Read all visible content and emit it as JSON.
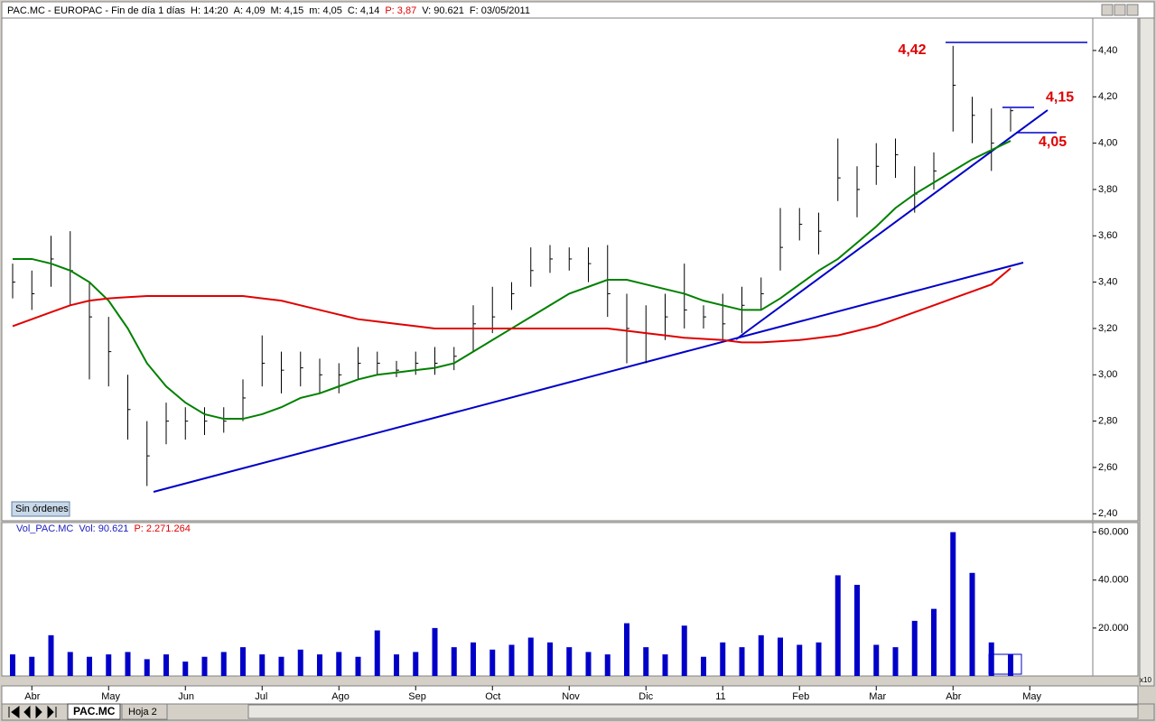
{
  "header": {
    "items": [
      {
        "text": "PAC.MC - EUROPAC - Fin de día 1 días"
      },
      {
        "text": "H: 14:20"
      },
      {
        "text": "A: 4,09"
      },
      {
        "text": "M: 4,15"
      },
      {
        "text": "m: 4,05"
      },
      {
        "text": "C: 4,14"
      },
      {
        "text": "P: 3,87",
        "color": "#e00000"
      },
      {
        "text": "V: 90.621"
      },
      {
        "text": "F: 03/05/2011"
      }
    ]
  },
  "status_button": "Sin órdenes",
  "volume_header": [
    {
      "text": "Vol_PAC.MC",
      "color": "#2020c0"
    },
    {
      "text": "Vol: 90.621",
      "color": "#2020c0"
    },
    {
      "text": "P: 2.271.264",
      "color": "#e00000"
    }
  ],
  "scale_note": "x10",
  "tabs": [
    "PAC.MC",
    "Hoja 2"
  ],
  "chart_data": [
    {
      "type": "ohlc",
      "color": "#000000",
      "high": [
        3.48,
        3.45,
        3.6,
        3.62,
        3.4,
        3.25,
        3.0,
        2.8,
        2.88,
        2.86,
        2.86,
        2.86,
        2.98,
        3.17,
        3.1,
        3.1,
        3.07,
        3.05,
        3.12,
        3.1,
        3.06,
        3.1,
        3.12,
        3.12,
        3.3,
        3.38,
        3.4,
        3.55,
        3.56,
        3.55,
        3.55,
        3.56,
        3.35,
        3.3,
        3.35,
        3.48,
        3.3,
        3.35,
        3.38,
        3.42,
        3.72,
        3.72,
        3.7,
        4.02,
        3.9,
        4.0,
        4.02,
        3.9,
        3.96,
        4.42,
        4.2,
        4.15,
        4.15,
        null
      ],
      "low": [
        3.33,
        3.28,
        3.38,
        3.3,
        2.98,
        2.95,
        2.72,
        2.52,
        2.7,
        2.72,
        2.74,
        2.75,
        2.8,
        2.95,
        2.92,
        2.95,
        2.92,
        2.92,
        2.98,
        3.0,
        2.99,
        3.0,
        3.0,
        3.02,
        3.1,
        3.18,
        3.28,
        3.38,
        3.44,
        3.45,
        3.4,
        3.25,
        3.05,
        3.05,
        3.15,
        3.2,
        3.2,
        3.15,
        3.18,
        3.28,
        3.45,
        3.58,
        3.52,
        3.75,
        3.68,
        3.82,
        3.85,
        3.7,
        3.8,
        4.05,
        4.0,
        3.88,
        4.05,
        null
      ],
      "close": [
        3.4,
        3.35,
        3.5,
        3.45,
        3.25,
        3.1,
        2.85,
        2.65,
        2.8,
        2.8,
        2.8,
        2.8,
        2.9,
        3.05,
        3.02,
        3.03,
        3.0,
        3.0,
        3.05,
        3.05,
        3.02,
        3.05,
        3.05,
        3.08,
        3.22,
        3.25,
        3.35,
        3.45,
        3.5,
        3.5,
        3.48,
        3.35,
        3.2,
        3.18,
        3.25,
        3.28,
        3.25,
        3.22,
        3.3,
        3.35,
        3.55,
        3.65,
        3.62,
        3.85,
        3.8,
        3.9,
        3.95,
        3.78,
        3.88,
        4.25,
        4.12,
        4.0,
        4.14,
        null
      ],
      "overlays": [
        {
          "color": "#008000",
          "values": [
            3.5,
            3.5,
            3.48,
            3.45,
            3.4,
            3.32,
            3.2,
            3.05,
            2.95,
            2.88,
            2.83,
            2.81,
            2.81,
            2.83,
            2.86,
            2.9,
            2.92,
            2.95,
            2.98,
            3.0,
            3.01,
            3.02,
            3.03,
            3.05,
            3.1,
            3.15,
            3.2,
            3.25,
            3.3,
            3.35,
            3.38,
            3.41,
            3.41,
            3.39,
            3.37,
            3.35,
            3.32,
            3.3,
            3.28,
            3.28,
            3.33,
            3.39,
            3.45,
            3.5,
            3.57,
            3.64,
            3.72,
            3.78,
            3.83,
            3.88,
            3.93,
            3.97,
            4.01,
            null
          ]
        },
        {
          "color": "#e00000",
          "values": [
            3.21,
            3.24,
            3.27,
            3.3,
            3.32,
            3.33,
            3.335,
            3.34,
            3.34,
            3.34,
            3.34,
            3.34,
            3.34,
            3.33,
            3.32,
            3.3,
            3.28,
            3.26,
            3.24,
            3.23,
            3.22,
            3.21,
            3.2,
            3.2,
            3.2,
            3.2,
            3.2,
            3.2,
            3.2,
            3.2,
            3.2,
            3.2,
            3.19,
            3.18,
            3.17,
            3.16,
            3.155,
            3.15,
            3.14,
            3.14,
            3.145,
            3.15,
            3.16,
            3.17,
            3.19,
            3.21,
            3.24,
            3.27,
            3.3,
            3.33,
            3.36,
            3.39,
            3.46,
            null
          ]
        }
      ],
      "annotations": [
        {
          "label": "4,42",
          "value": 4.42
        },
        {
          "label": "4,15",
          "value": 4.15
        },
        {
          "label": "4,05",
          "value": 4.05
        }
      ],
      "ylim": [
        2.37,
        4.54
      ],
      "yticks": [
        {
          "value": 2.4,
          "label": "2,40"
        },
        {
          "value": 2.6,
          "label": "2,60"
        },
        {
          "value": 2.8,
          "label": "2,80"
        },
        {
          "value": 3.0,
          "label": "3,00"
        },
        {
          "value": 3.2,
          "label": "3,20"
        },
        {
          "value": 3.4,
          "label": "3,40"
        },
        {
          "value": 3.6,
          "label": "3,60"
        },
        {
          "value": 3.8,
          "label": "3,80"
        },
        {
          "value": 4.0,
          "label": "4,00"
        },
        {
          "value": 4.2,
          "label": "4,20"
        },
        {
          "value": 4.4,
          "label": "4,40"
        }
      ]
    },
    {
      "type": "bar",
      "color": "#0000c8",
      "categories": [
        null,
        "Abr",
        null,
        null,
        null,
        "May",
        null,
        null,
        null,
        "Jun",
        null,
        null,
        null,
        "Jul",
        null,
        null,
        null,
        "Ago",
        null,
        null,
        null,
        "Sep",
        null,
        null,
        null,
        "Oct",
        null,
        null,
        null,
        "Nov",
        null,
        null,
        null,
        "Dic",
        null,
        null,
        null,
        "11",
        null,
        null,
        null,
        "Feb",
        null,
        null,
        null,
        "Mar",
        null,
        null,
        null,
        "Abr",
        null,
        null,
        null,
        "May"
      ],
      "values": [
        9000,
        8000,
        17000,
        10000,
        8000,
        9000,
        10000,
        7000,
        9000,
        6000,
        8000,
        10000,
        12000,
        9000,
        8000,
        11000,
        9000,
        10000,
        8000,
        19000,
        9000,
        10000,
        20000,
        12000,
        14000,
        11000,
        13000,
        16000,
        14000,
        12000,
        10000,
        9000,
        22000,
        12000,
        9000,
        21000,
        8000,
        14000,
        12000,
        17000,
        16000,
        13000,
        14000,
        42000,
        38000,
        13000,
        12000,
        23000,
        28000,
        60000,
        43000,
        14000,
        9000,
        null
      ],
      "ylim": [
        0,
        64000
      ],
      "yticks": [
        {
          "value": 20000,
          "label": "20.000"
        },
        {
          "value": 40000,
          "label": "40.000"
        },
        {
          "value": 60000,
          "label": "60.000"
        }
      ]
    }
  ]
}
